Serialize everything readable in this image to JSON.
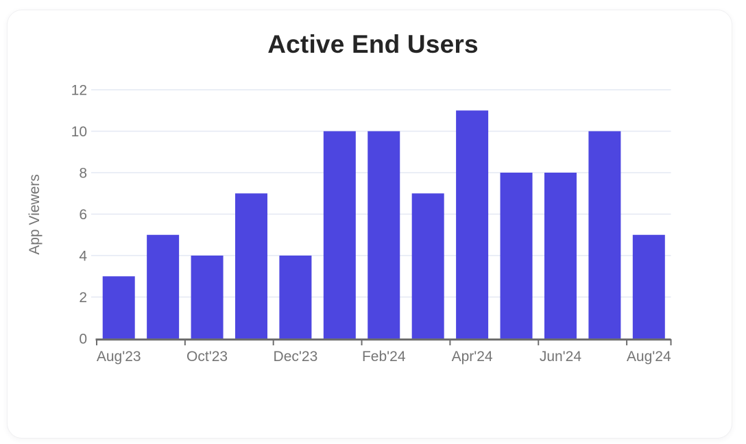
{
  "card": {
    "name": "chart-card"
  },
  "chart_data": {
    "type": "bar",
    "title": "Active End Users",
    "xlabel": "",
    "ylabel": "App Viewers",
    "categories": [
      "Aug'23",
      "Sep'23",
      "Oct'23",
      "Nov'23",
      "Dec'23",
      "Jan'24",
      "Feb'24",
      "Mar'24",
      "Apr'24",
      "May'24",
      "Jun'24",
      "Jul'24",
      "Aug'24"
    ],
    "values": [
      3,
      5,
      4,
      7,
      4,
      10,
      10,
      7,
      11,
      8,
      8,
      10,
      5
    ],
    "x_tick_labels": [
      "Aug'23",
      "Oct'23",
      "Dec'23",
      "Feb'24",
      "Apr'24",
      "Jun'24",
      "Aug'24"
    ],
    "x_label_every": 2,
    "ylim": [
      0,
      12
    ],
    "ytick_step": 2,
    "yticks": [
      0,
      2,
      4,
      6,
      8,
      10,
      12
    ],
    "grid": true,
    "legend": false
  },
  "colors": {
    "bar": "#4D46E0",
    "grid": "#E4E8F3",
    "axis": "#6E6E6E",
    "tick_text": "#747474",
    "title_text": "#252525",
    "card_background": "#FFFFFF",
    "card_border": "#F0F0F2"
  }
}
